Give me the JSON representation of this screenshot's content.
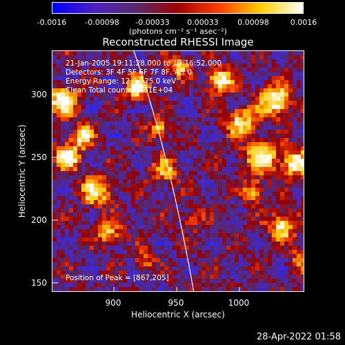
{
  "colorbar": {
    "ticks": [
      "-0.0016",
      "-0.00098",
      "-0.00033",
      "0.00033",
      "0.00098",
      "0.0016"
    ],
    "units": "(photons cm⁻² s⁻¹ asec⁻²)",
    "colors": [
      "#0000ff",
      "#4a20c0",
      "#5a2a6a",
      "#a00000",
      "#ff4000",
      "#ffd000",
      "#ffffff"
    ]
  },
  "title": "Reconstructed RHESSI Image",
  "annotations": {
    "time": "21-Jan-2005 19:11:28.000 to 19:16:52.000",
    "detectors": "Detectors: 3F 4F 5F 6F 7F 8F, Att 0",
    "energy": "Energy Range: 12.0 - 25.0 keV",
    "clean": "Clean     Total counts: 4.61E+04",
    "peak": "Position of Peak = [867,205]"
  },
  "axes": {
    "xlabel": "Heliocentric X (arcsec)",
    "ylabel": "Heliocentric Y (arcsec)",
    "xticks": [
      "900",
      "950",
      "1000"
    ],
    "yticks": [
      "300",
      "250",
      "200",
      "150"
    ]
  },
  "timestamp": "28-Apr-2022 01:58"
}
